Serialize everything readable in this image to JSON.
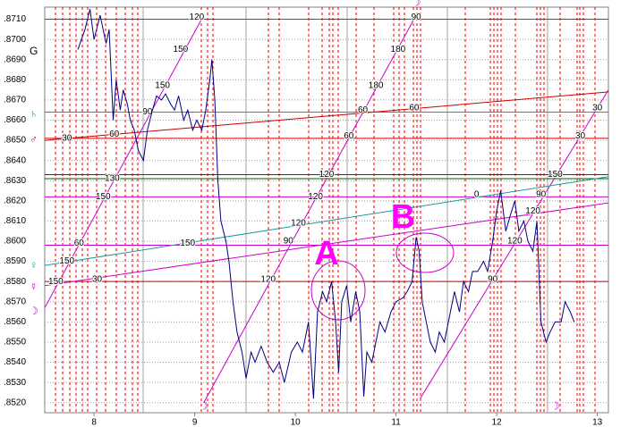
{
  "chart_data": {
    "type": "line",
    "color": "#000080",
    "x": [
      7.84,
      7.91,
      7.96,
      8.0,
      8.06,
      8.12,
      8.15,
      8.19,
      8.22,
      8.26,
      8.29,
      8.33,
      8.36,
      8.4,
      8.44,
      8.49,
      8.53,
      8.58,
      8.62,
      8.67,
      8.71,
      8.76,
      8.8,
      8.84,
      8.89,
      8.93,
      8.98,
      9.02,
      9.07,
      9.11,
      9.15,
      9.17,
      9.2,
      9.23,
      9.26,
      9.31,
      9.34,
      9.38,
      9.42,
      9.47,
      9.51,
      9.56,
      9.6,
      9.66,
      9.72,
      9.78,
      9.84,
      9.89,
      9.96,
      10.02,
      10.07,
      10.13,
      10.18,
      10.22,
      10.27,
      10.31,
      10.36,
      10.4,
      10.43,
      10.46,
      10.51,
      10.55,
      10.6,
      10.64,
      10.68,
      10.71,
      10.76,
      10.8,
      10.84,
      10.89,
      10.95,
      11.0,
      11.07,
      11.11,
      11.16,
      11.2,
      11.23,
      11.26,
      11.3,
      11.34,
      11.39,
      11.43,
      11.48,
      11.54,
      11.58,
      11.63,
      11.67,
      11.72,
      11.76,
      11.81,
      11.87,
      11.91,
      11.96,
      12.0,
      12.04,
      12.09,
      12.13,
      12.18,
      12.22,
      12.27,
      12.31,
      12.36,
      12.4,
      12.44,
      12.49,
      12.53,
      12.58,
      12.64,
      12.68,
      12.73,
      12.77
    ],
    "values": [
      0.8695,
      0.8705,
      0.8715,
      0.87,
      0.8712,
      0.8698,
      0.8705,
      0.866,
      0.868,
      0.8665,
      0.8675,
      0.8668,
      0.866,
      0.8655,
      0.8645,
      0.864,
      0.8655,
      0.8665,
      0.8672,
      0.867,
      0.8673,
      0.8668,
      0.8665,
      0.8672,
      0.866,
      0.8665,
      0.8655,
      0.866,
      0.8655,
      0.8665,
      0.868,
      0.869,
      0.867,
      0.863,
      0.861,
      0.86,
      0.859,
      0.857,
      0.8555,
      0.8545,
      0.8532,
      0.8545,
      0.854,
      0.8548,
      0.854,
      0.8535,
      0.854,
      0.853,
      0.8545,
      0.855,
      0.8545,
      0.856,
      0.8522,
      0.8565,
      0.8575,
      0.857,
      0.858,
      0.856,
      0.8535,
      0.857,
      0.8578,
      0.856,
      0.8575,
      0.8565,
      0.8523,
      0.8545,
      0.854,
      0.855,
      0.856,
      0.8555,
      0.8565,
      0.857,
      0.8572,
      0.8575,
      0.858,
      0.8602,
      0.8595,
      0.857,
      0.856,
      0.855,
      0.8545,
      0.8555,
      0.855,
      0.8565,
      0.8575,
      0.8565,
      0.858,
      0.8575,
      0.8585,
      0.8585,
      0.859,
      0.8585,
      0.86,
      0.8615,
      0.8625,
      0.8605,
      0.8612,
      0.862,
      0.8605,
      0.861,
      0.86,
      0.8595,
      0.861,
      0.856,
      0.855,
      0.8555,
      0.856,
      0.856,
      0.857,
      0.8565,
      0.856
    ],
    "xlim": [
      7.51,
      13.11
    ],
    "xticks": [
      8,
      9,
      10,
      11,
      12,
      13
    ],
    "ylim": [
      0.8515,
      0.8716
    ],
    "yticks": [
      {
        "value": 0.852,
        "label": ".8520"
      },
      {
        "value": 0.853,
        "label": ".8530"
      },
      {
        "value": 0.854,
        "label": ".8540"
      },
      {
        "value": 0.855,
        "label": ".8550"
      },
      {
        "value": 0.856,
        "label": ".8560"
      },
      {
        "value": 0.857,
        "label": ".8570"
      },
      {
        "value": 0.858,
        "label": ".8580"
      },
      {
        "value": 0.859,
        "label": ".8590"
      },
      {
        "value": 0.86,
        "label": ".8600"
      },
      {
        "value": 0.861,
        "label": ".8610"
      },
      {
        "value": 0.862,
        "label": ".8620"
      },
      {
        "value": 0.863,
        "label": ".8630"
      },
      {
        "value": 0.864,
        "label": ".8640"
      },
      {
        "value": 0.865,
        "label": ".8650"
      },
      {
        "value": 0.866,
        "label": ".8660"
      },
      {
        "value": 0.867,
        "label": ".8670"
      },
      {
        "value": 0.868,
        "label": ".8680"
      },
      {
        "value": 0.869,
        "label": ".8690"
      },
      {
        "value": 0.87,
        "label": ".8700"
      },
      {
        "value": 0.871,
        "label": ".8710"
      }
    ],
    "grid": true,
    "levels": [
      {
        "value": 0.871,
        "color": "#cc00cc"
      },
      {
        "value": 0.8664,
        "color": "#1a9a9a"
      },
      {
        "value": 0.8651,
        "color": "#cc0000"
      },
      {
        "value": 0.8633,
        "color": "#006000"
      },
      {
        "value": 0.8631,
        "color": "#006000"
      },
      {
        "value": 0.8622,
        "color": "#cc00cc"
      },
      {
        "value": 0.8598,
        "color": "#cc00cc"
      },
      {
        "value": 0.858,
        "color": "#cc0000"
      }
    ],
    "rays": [
      {
        "from": [
          7.51,
          0.8567
        ],
        "to": [
          9.09,
          0.8712
        ],
        "color": "#cc00cc"
      },
      {
        "from": [
          9.09,
          0.852
        ],
        "to": [
          11.2,
          0.8712
        ],
        "color": "#cc00cc"
      },
      {
        "from": [
          11.24,
          0.8522
        ],
        "to": [
          13.11,
          0.8675
        ],
        "color": "#cc00cc"
      },
      {
        "from": [
          7.51,
          0.8588
        ],
        "to": [
          13.11,
          0.8632
        ],
        "color": "#1a9a9a"
      },
      {
        "from": [
          7.51,
          0.8578
        ],
        "to": [
          13.11,
          0.8619
        ],
        "color": "#cc00cc"
      },
      {
        "from": [
          7.51,
          0.865
        ],
        "to": [
          13.11,
          0.8674
        ],
        "color": "#cc0000"
      }
    ],
    "angle_labels": [
      {
        "text": 120,
        "x": 9.02,
        "y": 0.8711
      },
      {
        "text": 150,
        "x": 8.86,
        "y": 0.8695
      },
      {
        "text": 150,
        "x": 8.68,
        "y": 0.8677
      },
      {
        "text": 90,
        "x": 8.53,
        "y": 0.8664
      },
      {
        "text": 60,
        "x": 8.2,
        "y": 0.8653
      },
      {
        "text": 30,
        "x": 7.73,
        "y": 0.8651
      },
      {
        "text": 130,
        "x": 8.18,
        "y": 0.8631
      },
      {
        "text": 150,
        "x": 8.09,
        "y": 0.8622
      },
      {
        "text": 60,
        "x": 7.85,
        "y": 0.8599
      },
      {
        "text": 150,
        "x": 7.73,
        "y": 0.859
      },
      {
        "text": 150,
        "x": 7.62,
        "y": 0.858
      },
      {
        "text": 30,
        "x": 8.03,
        "y": 0.8581
      },
      {
        "text": 150,
        "x": 8.93,
        "y": 0.8599
      },
      {
        "text": 120,
        "x": 9.73,
        "y": 0.8581
      },
      {
        "text": 90,
        "x": 9.93,
        "y": 0.86
      },
      {
        "text": 120,
        "x": 10.03,
        "y": 0.8609
      },
      {
        "text": 120,
        "x": 10.2,
        "y": 0.8622
      },
      {
        "text": 120,
        "x": 10.31,
        "y": 0.8633
      },
      {
        "text": 60,
        "x": 10.53,
        "y": 0.8652
      },
      {
        "text": 60,
        "x": 10.67,
        "y": 0.8665
      },
      {
        "text": 90,
        "x": 11.2,
        "y": 0.8711
      },
      {
        "text": 180,
        "x": 11.02,
        "y": 0.8695
      },
      {
        "text": 180,
        "x": 10.8,
        "y": 0.8677
      },
      {
        "text": 60,
        "x": 11.18,
        "y": 0.8666
      },
      {
        "text": 0,
        "x": 11.8,
        "y": 0.8623
      },
      {
        "text": 30,
        "x": 13.0,
        "y": 0.8666
      },
      {
        "text": 30,
        "x": 12.83,
        "y": 0.8652
      },
      {
        "text": 150,
        "x": 12.58,
        "y": 0.8633
      },
      {
        "text": 90,
        "x": 12.44,
        "y": 0.8623
      },
      {
        "text": 120,
        "x": 12.36,
        "y": 0.8615
      },
      {
        "text": 120,
        "x": 12.18,
        "y": 0.86
      },
      {
        "text": 90,
        "x": 11.96,
        "y": 0.8581
      }
    ],
    "glyphs": [
      {
        "text": "G",
        "x": 7.4,
        "y": 0.8694,
        "color": "#000000"
      },
      {
        "text": "♄",
        "x": 7.4,
        "y": 0.8663,
        "color": "#1a9a9a"
      },
      {
        "text": "♂",
        "x": 7.4,
        "y": 0.865,
        "color": "#cc0000"
      },
      {
        "text": "♀",
        "x": 7.4,
        "y": 0.8588,
        "color": "#1a9a9a"
      },
      {
        "text": "☿",
        "x": 7.4,
        "y": 0.8577,
        "color": "#cc00cc"
      },
      {
        "text": "☽",
        "x": 7.4,
        "y": 0.8565,
        "color": "#cc00cc"
      },
      {
        "text": "☽",
        "x": 11.2,
        "y": 0.8718,
        "color": "#cc00cc"
      },
      {
        "text": "☽",
        "x": 9.09,
        "y": 0.8518,
        "color": "#cc00cc"
      },
      {
        "text": "☽",
        "x": 12.58,
        "y": 0.8518,
        "color": "#cc00cc"
      }
    ],
    "annotations": [
      {
        "text": "A",
        "x": 10.31,
        "y": 0.8593
      },
      {
        "text": "B",
        "x": 11.07,
        "y": 0.8611
      }
    ]
  }
}
